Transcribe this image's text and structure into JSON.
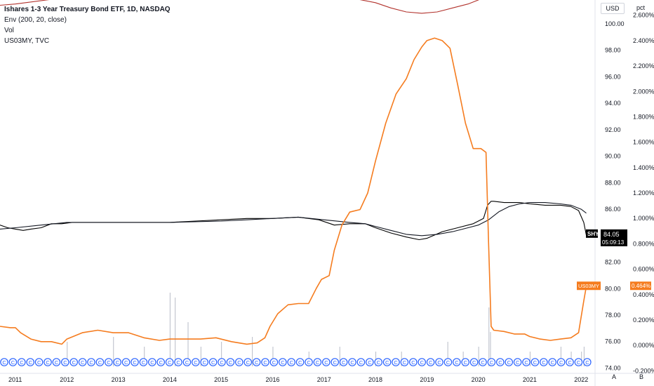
{
  "legend": {
    "title": "Ishares 1-3 Year Treasury Bond ETF, 1D, NASDAQ",
    "indicator1": "Env (200, 20, close)",
    "indicator2": "Vol",
    "indicator3": "US03MY, TVC"
  },
  "axis_headers": {
    "left": "USD",
    "right": "pct"
  },
  "corner_labels": {
    "a": "A",
    "b": "B"
  },
  "events_marker": "C",
  "chart_data": {
    "type": "line",
    "x_ticks": [
      "2011",
      "2012",
      "2013",
      "2014",
      "2015",
      "2016",
      "2017",
      "2018",
      "2019",
      "2020",
      "2021",
      "2022"
    ],
    "y_axis_usd": {
      "ticks": [
        "100.00",
        "98.00",
        "96.00",
        "94.00",
        "92.00",
        "90.00",
        "88.00",
        "86.00",
        "84.00",
        "82.00",
        "80.00",
        "78.00",
        "76.00",
        "74.00"
      ],
      "range": [
        73.6,
        101.8
      ]
    },
    "y_axis_pct": {
      "ticks": [
        "2.600%",
        "2.400%",
        "2.200%",
        "2.000%",
        "1.800%",
        "1.600%",
        "1.400%",
        "1.200%",
        "1.000%",
        "0.800%",
        "0.600%",
        "0.400%",
        "0.200%",
        "0.000%",
        "-0.200%"
      ],
      "range": [
        -0.22,
        2.72
      ]
    },
    "series": [
      {
        "name": "SHY",
        "axis": "usd",
        "color": "#000000",
        "last_label": "SHY",
        "last_value": "84.05",
        "countdown": "05:09:13",
        "x": [
          2010.7,
          2010.85,
          2011.0,
          2011.15,
          2011.3,
          2011.5,
          2011.7,
          2011.9,
          2012.1,
          2012.5,
          2013.0,
          2013.5,
          2014.0,
          2014.5,
          2015.0,
          2015.5,
          2016.0,
          2016.5,
          2016.9,
          2017.2,
          2017.5,
          2017.8,
          2018.0,
          2018.3,
          2018.6,
          2018.85,
          2019.0,
          2019.3,
          2019.6,
          2019.9,
          2020.1,
          2020.18,
          2020.25,
          2020.3,
          2020.5,
          2020.8,
          2021.0,
          2021.3,
          2021.6,
          2021.8,
          2021.95,
          2022.05,
          2022.1
        ],
        "y": [
          84.8,
          84.6,
          84.5,
          84.4,
          84.5,
          84.6,
          84.9,
          84.9,
          85.0,
          85.0,
          85.0,
          85.0,
          85.0,
          85.1,
          85.2,
          85.3,
          85.3,
          85.4,
          85.2,
          84.8,
          84.9,
          84.9,
          84.6,
          84.2,
          83.9,
          83.7,
          83.8,
          84.3,
          84.6,
          84.9,
          85.3,
          86.3,
          86.6,
          86.6,
          86.5,
          86.5,
          86.4,
          86.3,
          86.3,
          86.2,
          85.9,
          85.0,
          84.05
        ]
      },
      {
        "name": "Env basis",
        "axis": "usd",
        "color": "#131722",
        "x": [
          2010.7,
          2011.0,
          2011.5,
          2012.0,
          2012.5,
          2013.0,
          2014.0,
          2015.0,
          2015.5,
          2016.0,
          2016.5,
          2017.0,
          2017.5,
          2017.8,
          2018.0,
          2018.3,
          2018.6,
          2018.9,
          2019.2,
          2019.5,
          2019.8,
          2020.0,
          2020.2,
          2020.4,
          2020.6,
          2020.8,
          2021.0,
          2021.3,
          2021.6,
          2021.8,
          2022.0,
          2022.1
        ],
        "y": [
          84.5,
          84.6,
          84.8,
          85.0,
          85.0,
          85.0,
          85.0,
          85.1,
          85.2,
          85.3,
          85.4,
          85.2,
          85.0,
          84.9,
          84.7,
          84.4,
          84.1,
          84.0,
          84.1,
          84.3,
          84.6,
          84.8,
          85.2,
          85.8,
          86.2,
          86.4,
          86.5,
          86.5,
          86.4,
          86.3,
          86.0,
          85.7
        ]
      },
      {
        "name": "Env upper",
        "axis": "usd",
        "color": "#b2322c",
        "x": [
          2010.7,
          2011.0,
          2012.0,
          2013.0,
          2014.0,
          2015.0,
          2016.0,
          2017.0,
          2017.6,
          2018.0,
          2018.3,
          2018.6,
          2018.9,
          2019.2,
          2019.5,
          2019.8,
          2020.0,
          2020.2
        ],
        "y": [
          101.4,
          101.5,
          102.0,
          102.0,
          102.0,
          102.1,
          102.3,
          102.2,
          101.9,
          101.6,
          101.2,
          100.9,
          100.8,
          100.9,
          101.2,
          101.5,
          101.8,
          102.2
        ]
      },
      {
        "name": "US03MY",
        "axis": "pct",
        "color": "#f57c1f",
        "last_label": "US03MY",
        "last_value": "0.464%",
        "x": [
          2010.7,
          2010.9,
          2011.0,
          2011.1,
          2011.3,
          2011.5,
          2011.7,
          2011.9,
          2012.0,
          2012.3,
          2012.6,
          2012.9,
          2013.2,
          2013.5,
          2013.8,
          2014.0,
          2014.3,
          2014.6,
          2014.9,
          2015.2,
          2015.5,
          2015.7,
          2015.85,
          2015.95,
          2016.1,
          2016.3,
          2016.5,
          2016.7,
          2016.85,
          2016.95,
          2017.1,
          2017.2,
          2017.35,
          2017.5,
          2017.7,
          2017.85,
          2018.0,
          2018.2,
          2018.4,
          2018.6,
          2018.75,
          2018.9,
          2019.0,
          2019.15,
          2019.3,
          2019.45,
          2019.6,
          2019.75,
          2019.9,
          2020.05,
          2020.15,
          2020.2,
          2020.25,
          2020.3,
          2020.5,
          2020.7,
          2020.9,
          2021.0,
          2021.2,
          2021.4,
          2021.6,
          2021.8,
          2021.95,
          2022.05,
          2022.1
        ],
        "y": [
          0.15,
          0.14,
          0.14,
          0.1,
          0.05,
          0.03,
          0.03,
          0.01,
          0.05,
          0.1,
          0.12,
          0.1,
          0.1,
          0.06,
          0.04,
          0.05,
          0.05,
          0.05,
          0.06,
          0.03,
          0.01,
          0.02,
          0.06,
          0.15,
          0.25,
          0.32,
          0.33,
          0.33,
          0.45,
          0.52,
          0.55,
          0.75,
          0.95,
          1.05,
          1.07,
          1.2,
          1.45,
          1.75,
          1.98,
          2.1,
          2.25,
          2.35,
          2.4,
          2.42,
          2.4,
          2.34,
          2.05,
          1.75,
          1.55,
          1.55,
          1.52,
          0.8,
          0.15,
          0.12,
          0.11,
          0.09,
          0.09,
          0.07,
          0.05,
          0.04,
          0.05,
          0.06,
          0.1,
          0.35,
          0.464
        ]
      }
    ],
    "volume": {
      "axis_ceiling_pct_of_bottom": 0.35,
      "bars": [
        {
          "x": 2012.0,
          "v": 0.25
        },
        {
          "x": 2012.9,
          "v": 0.3
        },
        {
          "x": 2013.5,
          "v": 0.2
        },
        {
          "x": 2014.0,
          "v": 0.75
        },
        {
          "x": 2014.1,
          "v": 0.7
        },
        {
          "x": 2014.35,
          "v": 0.45
        },
        {
          "x": 2014.6,
          "v": 0.2
        },
        {
          "x": 2015.0,
          "v": 0.25
        },
        {
          "x": 2015.6,
          "v": 0.3
        },
        {
          "x": 2016.0,
          "v": 0.2
        },
        {
          "x": 2016.7,
          "v": 0.15
        },
        {
          "x": 2017.3,
          "v": 0.2
        },
        {
          "x": 2018.0,
          "v": 0.15
        },
        {
          "x": 2018.5,
          "v": 0.15
        },
        {
          "x": 2019.4,
          "v": 0.25
        },
        {
          "x": 2019.7,
          "v": 0.15
        },
        {
          "x": 2020.0,
          "v": 0.2
        },
        {
          "x": 2020.2,
          "v": 0.6
        },
        {
          "x": 2020.23,
          "v": 0.35
        },
        {
          "x": 2021.0,
          "v": 0.15
        },
        {
          "x": 2021.6,
          "v": 0.2
        },
        {
          "x": 2021.8,
          "v": 0.15
        },
        {
          "x": 2022.0,
          "v": 0.15
        },
        {
          "x": 2022.05,
          "v": 0.2
        }
      ]
    },
    "x_range": [
      2010.7,
      2022.27
    ],
    "grid": false,
    "legend_position": "top-left"
  }
}
